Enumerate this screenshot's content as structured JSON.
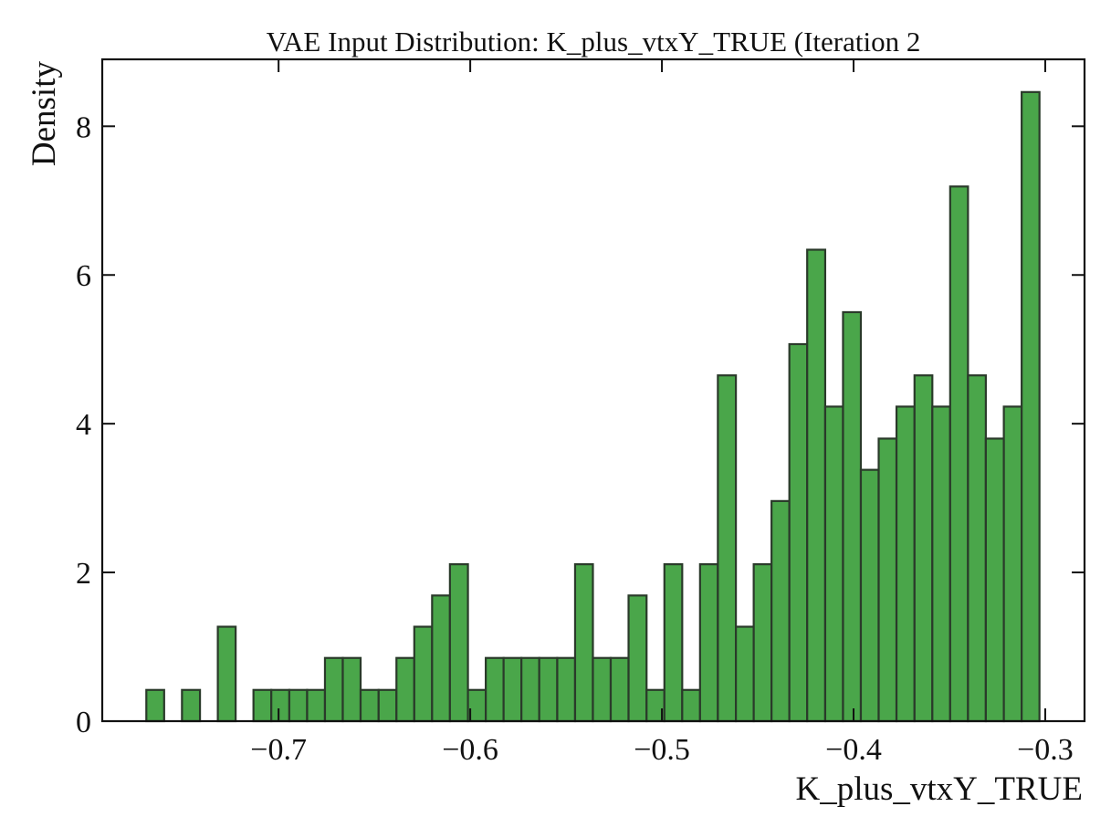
{
  "chart_data": {
    "type": "histogram",
    "title": "VAE Input Distribution: K_plus_vtxY_TRUE (Iteration 2",
    "xlabel": "K_plus_vtxY_TRUE",
    "ylabel": "Density",
    "bins": [
      -0.769,
      -0.7597,
      -0.7504,
      -0.741,
      -0.7317,
      -0.7224,
      -0.7131,
      -0.7038,
      -0.6944,
      -0.6851,
      -0.6758,
      -0.6665,
      -0.6572,
      -0.6478,
      -0.6385,
      -0.6292,
      -0.6199,
      -0.6106,
      -0.6012,
      -0.5919,
      -0.5826,
      -0.5733,
      -0.564,
      -0.5546,
      -0.5453,
      -0.536,
      -0.5267,
      -0.5174,
      -0.508,
      -0.4987,
      -0.4894,
      -0.4801,
      -0.4708,
      -0.4614,
      -0.4521,
      -0.4428,
      -0.4335,
      -0.4242,
      -0.4148,
      -0.4055,
      -0.3962,
      -0.3869,
      -0.3776,
      -0.3682,
      -0.3589,
      -0.3496,
      -0.3403,
      -0.331,
      -0.3216,
      -0.3123,
      -0.303
    ],
    "values": [
      0.42,
      0,
      0.42,
      0,
      1.27,
      0,
      0.42,
      0.42,
      0.42,
      0.42,
      0.85,
      0.85,
      0.42,
      0.42,
      0.85,
      1.27,
      1.69,
      2.11,
      0.42,
      0.85,
      0.85,
      0.85,
      0.85,
      0.85,
      2.11,
      0.85,
      0.85,
      1.69,
      0.42,
      2.11,
      0.42,
      2.11,
      4.65,
      1.27,
      2.11,
      2.96,
      5.07,
      6.34,
      4.23,
      5.5,
      3.38,
      3.8,
      4.23,
      4.65,
      4.23,
      7.19,
      4.65,
      3.8,
      4.23,
      8.46
    ],
    "color": "#4aa64a",
    "edgecolor": "#2a3a2a",
    "xlim": [
      -0.792,
      -0.2795
    ],
    "ylim": [
      0,
      8.9
    ],
    "xticks": [
      {
        "value": -0.7,
        "label": "−0.7"
      },
      {
        "value": -0.6,
        "label": "−0.6"
      },
      {
        "value": -0.5,
        "label": "−0.5"
      },
      {
        "value": -0.4,
        "label": "−0.4"
      },
      {
        "value": -0.3,
        "label": "−0.3"
      }
    ],
    "yticks": [
      0,
      2,
      4,
      6,
      8
    ]
  }
}
